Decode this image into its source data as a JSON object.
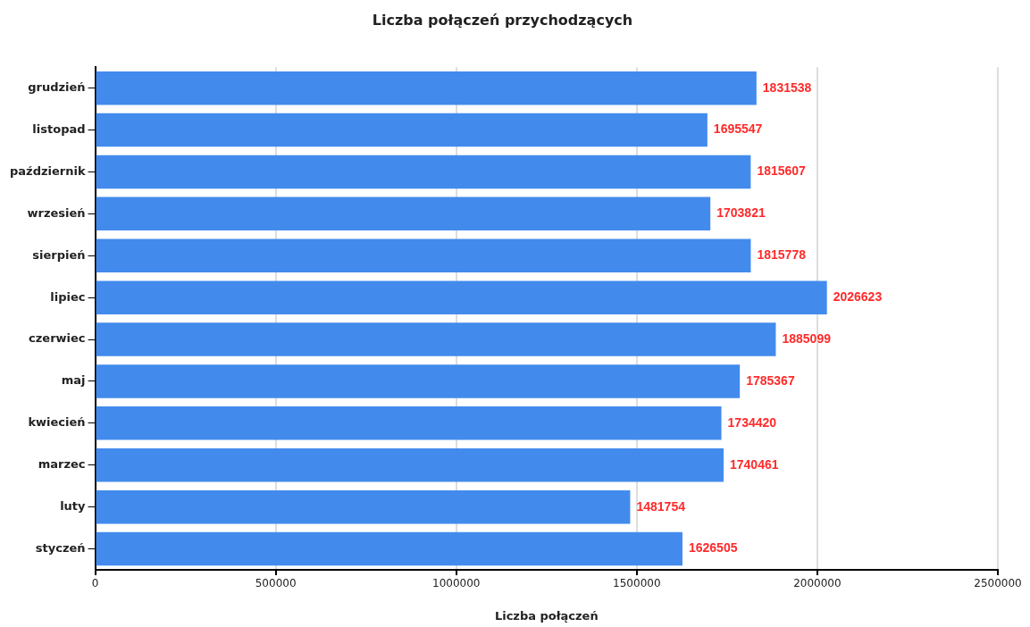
{
  "chart_data": {
    "type": "bar",
    "orientation": "horizontal",
    "title": "Liczba połączeń przychodzących",
    "xlabel": "Liczba połączeń",
    "categories": [
      "grudzień",
      "listopad",
      "październik",
      "wrzesień",
      "sierpień",
      "lipiec",
      "czerwiec",
      "maj",
      "kwiecień",
      "marzec",
      "luty",
      "styczeń"
    ],
    "values": [
      1831538,
      1695547,
      1815607,
      1703821,
      1815778,
      2026623,
      1885099,
      1785367,
      1734420,
      1740461,
      1481754,
      1626505
    ],
    "color": "#428bed",
    "xlim": [
      0,
      2500000
    ],
    "xticks": [
      0,
      500000,
      1000000,
      1500000,
      2000000,
      2500000
    ],
    "grid": "x",
    "data_labels": true
  }
}
